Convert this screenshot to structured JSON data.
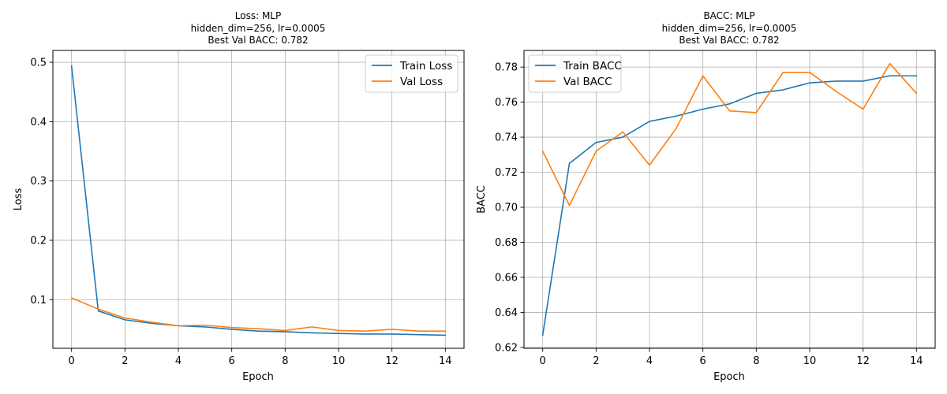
{
  "chart_data": [
    {
      "type": "line",
      "title_lines": [
        "Loss: MLP",
        "hidden_dim=256, lr=0.0005",
        "Best Val BACC: 0.782"
      ],
      "xlabel": "Epoch",
      "ylabel": "Loss",
      "xlim": [
        -0.7,
        14.7
      ],
      "ylim": [
        0.018,
        0.52
      ],
      "xticks": [
        0,
        2,
        4,
        6,
        8,
        10,
        12,
        14
      ],
      "yticks": [
        0.1,
        0.2,
        0.3,
        0.4,
        0.5
      ],
      "ytick_decimals": 1,
      "grid": true,
      "legend_position": "top-right",
      "x": [
        0,
        1,
        2,
        3,
        4,
        5,
        6,
        7,
        8,
        9,
        10,
        11,
        12,
        13,
        14
      ],
      "series": [
        {
          "name": "Train Loss",
          "color": "#1f77b4",
          "values": [
            0.494,
            0.081,
            0.066,
            0.06,
            0.056,
            0.054,
            0.05,
            0.047,
            0.046,
            0.044,
            0.043,
            0.042,
            0.042,
            0.041,
            0.04
          ]
        },
        {
          "name": "Val Loss",
          "color": "#ff7f0e",
          "values": [
            0.103,
            0.084,
            0.069,
            0.062,
            0.056,
            0.057,
            0.053,
            0.051,
            0.048,
            0.054,
            0.048,
            0.047,
            0.05,
            0.047,
            0.047
          ]
        }
      ]
    },
    {
      "type": "line",
      "title_lines": [
        "BACC: MLP",
        "hidden_dim=256, lr=0.0005",
        "Best Val BACC: 0.782"
      ],
      "xlabel": "Epoch",
      "ylabel": "BACC",
      "xlim": [
        -0.7,
        14.7
      ],
      "ylim": [
        0.6195,
        0.7895
      ],
      "xticks": [
        0,
        2,
        4,
        6,
        8,
        10,
        12,
        14
      ],
      "yticks": [
        0.62,
        0.64,
        0.66,
        0.68,
        0.7,
        0.72,
        0.74,
        0.76,
        0.78
      ],
      "ytick_decimals": 2,
      "grid": true,
      "legend_position": "top-left",
      "x": [
        0,
        1,
        2,
        3,
        4,
        5,
        6,
        7,
        8,
        9,
        10,
        11,
        12,
        13,
        14
      ],
      "series": [
        {
          "name": "Train BACC",
          "color": "#1f77b4",
          "values": [
            0.627,
            0.725,
            0.737,
            0.74,
            0.749,
            0.752,
            0.756,
            0.759,
            0.765,
            0.767,
            0.771,
            0.772,
            0.772,
            0.775,
            0.775
          ]
        },
        {
          "name": "Val BACC",
          "color": "#ff7f0e",
          "values": [
            0.732,
            0.701,
            0.732,
            0.743,
            0.724,
            0.745,
            0.775,
            0.755,
            0.754,
            0.777,
            0.777,
            0.766,
            0.756,
            0.782,
            0.765
          ]
        }
      ]
    }
  ]
}
